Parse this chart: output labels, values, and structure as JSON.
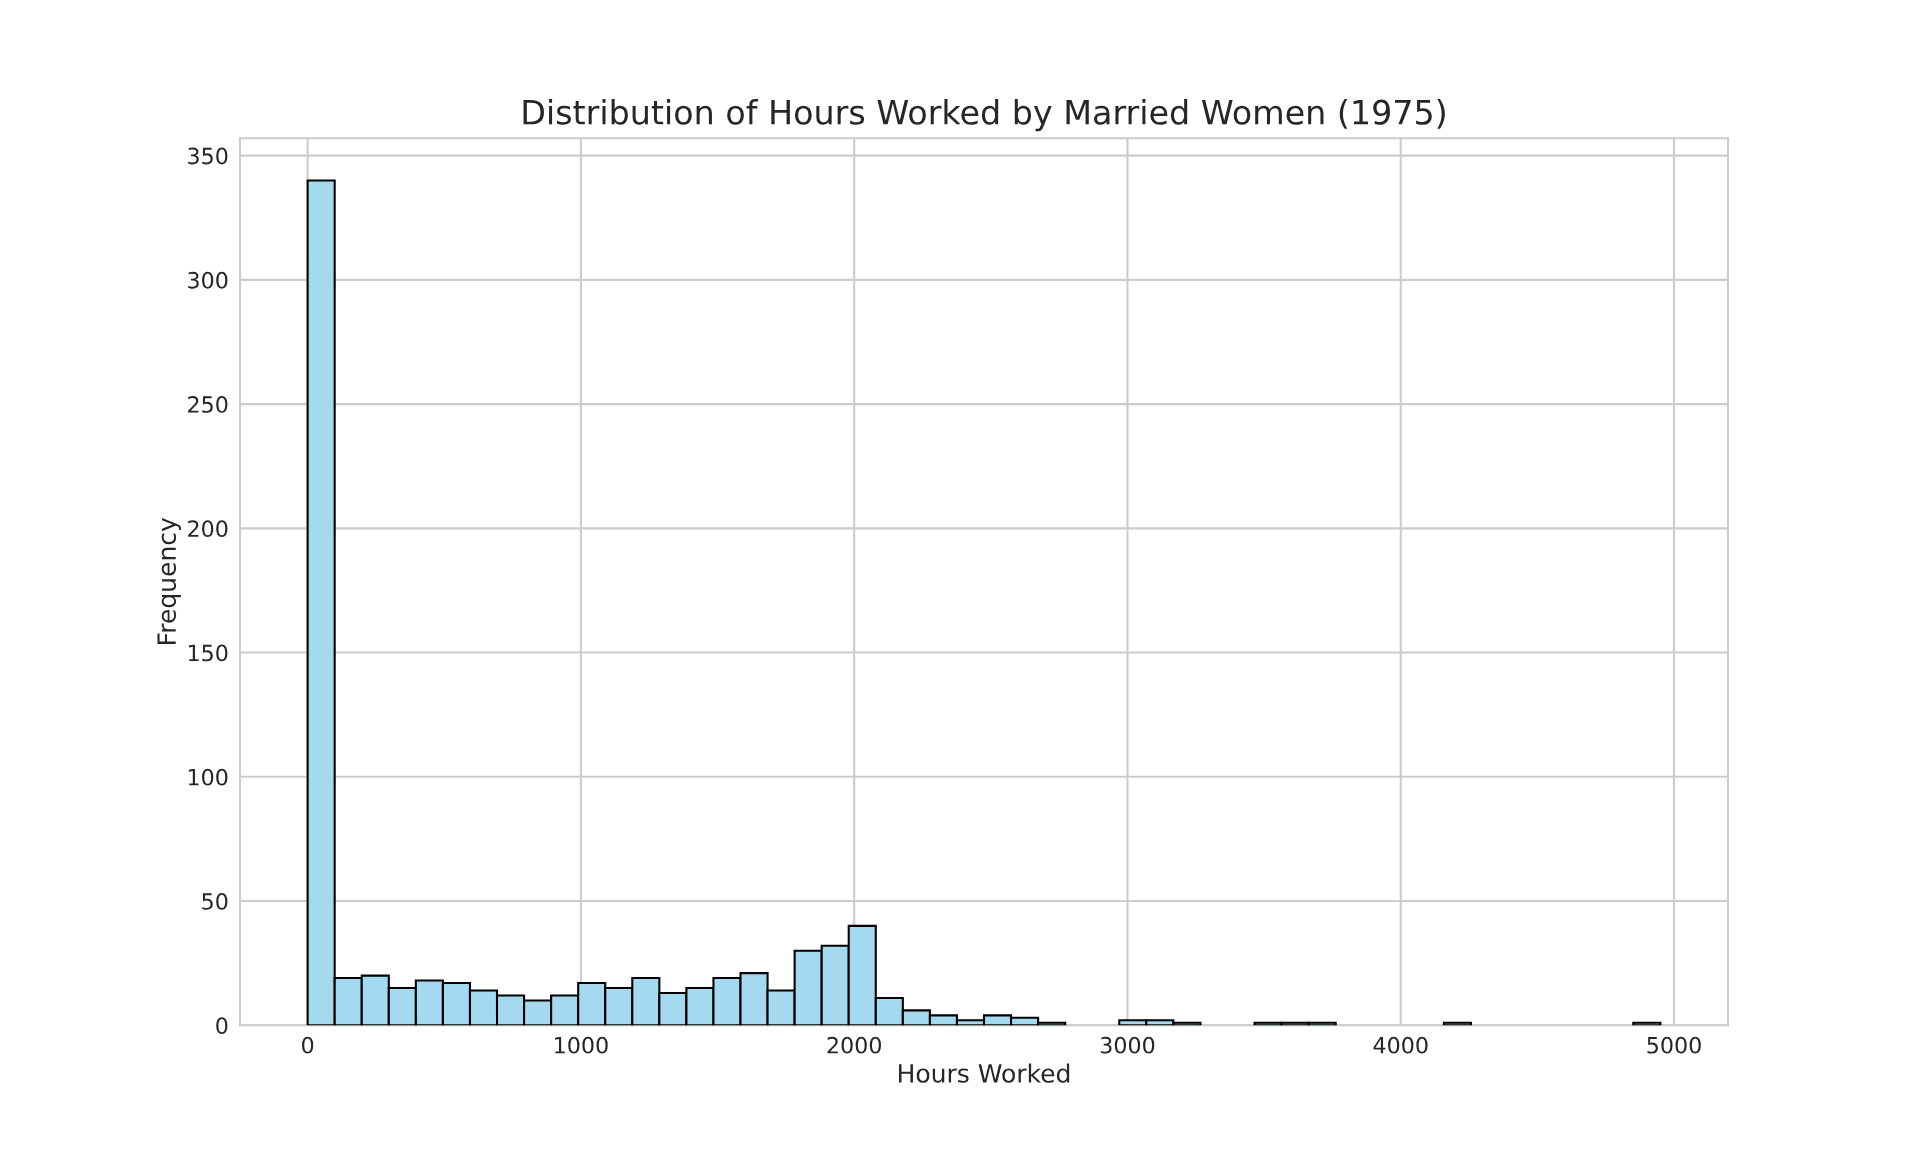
{
  "chart_data": {
    "type": "histogram",
    "title": "Distribution of Hours Worked by Married Women (1975)",
    "xlabel": "Hours Worked",
    "ylabel": "Frequency",
    "bins": [
      0,
      99,
      198,
      297,
      396,
      495,
      594,
      693,
      792,
      891,
      990,
      1089,
      1188,
      1287,
      1386,
      1485,
      1584,
      1683,
      1782,
      1881,
      1980,
      2079,
      2178,
      2277,
      2376,
      2475,
      2574,
      2673,
      2772,
      2871,
      2970,
      3069,
      3168,
      3267,
      3366,
      3465,
      3564,
      3663,
      3762,
      3861,
      3960,
      4059,
      4158,
      4257,
      4356,
      4455,
      4554,
      4653,
      4752,
      4851,
      4950
    ],
    "values": [
      340,
      19,
      20,
      15,
      18,
      17,
      14,
      12,
      10,
      12,
      17,
      15,
      19,
      13,
      15,
      19,
      21,
      14,
      30,
      32,
      40,
      11,
      6,
      4,
      2,
      4,
      3,
      1,
      0,
      0,
      2,
      2,
      1,
      0,
      0,
      1,
      1,
      1,
      0,
      0,
      0,
      0,
      1,
      0,
      0,
      0,
      0,
      0,
      0,
      1
    ],
    "color": "#a5d9f0",
    "xlim": [
      -247.5,
      5197.5
    ],
    "ylim": [
      0,
      357
    ],
    "xticks": [
      0,
      1000,
      2000,
      3000,
      4000,
      5000
    ],
    "yticks": [
      0,
      50,
      100,
      150,
      200,
      250,
      300,
      350
    ],
    "grid": true
  }
}
